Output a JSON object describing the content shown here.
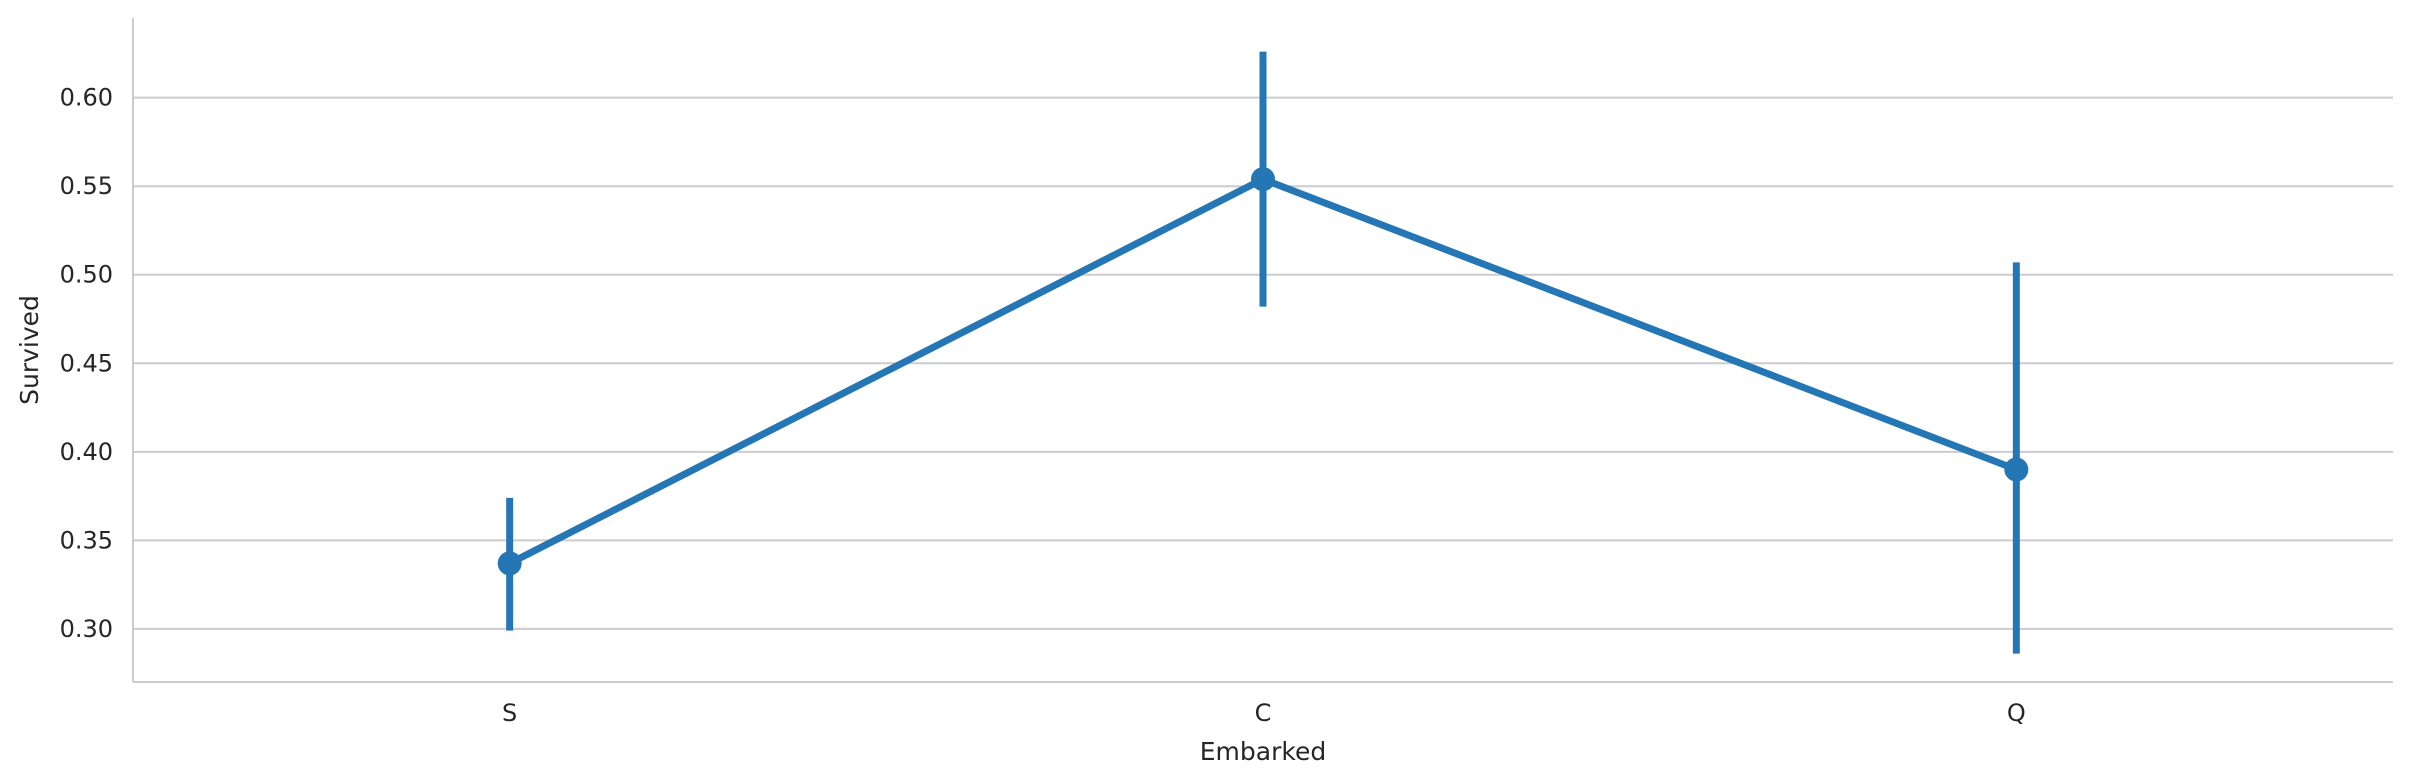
{
  "chart_data": {
    "type": "line",
    "xlabel": "Embarked",
    "ylabel": "Survived",
    "categories": [
      "S",
      "C",
      "Q"
    ],
    "series": [
      {
        "values": [
          0.337,
          0.554,
          0.39
        ],
        "ci_low": [
          0.299,
          0.482,
          0.286
        ],
        "ci_high": [
          0.374,
          0.626,
          0.507
        ]
      }
    ],
    "ylim": [
      0.27,
      0.645
    ],
    "yticks": [
      0.3,
      0.35,
      0.4,
      0.45,
      0.5,
      0.55,
      0.6
    ],
    "ytick_labels": [
      "0.30",
      "0.35",
      "0.40",
      "0.45",
      "0.50",
      "0.55",
      "0.60"
    ],
    "grid": "horizontal",
    "colors": {
      "series": "#2576b4",
      "grid": "#cccccc",
      "spine": "#cccccc"
    }
  }
}
